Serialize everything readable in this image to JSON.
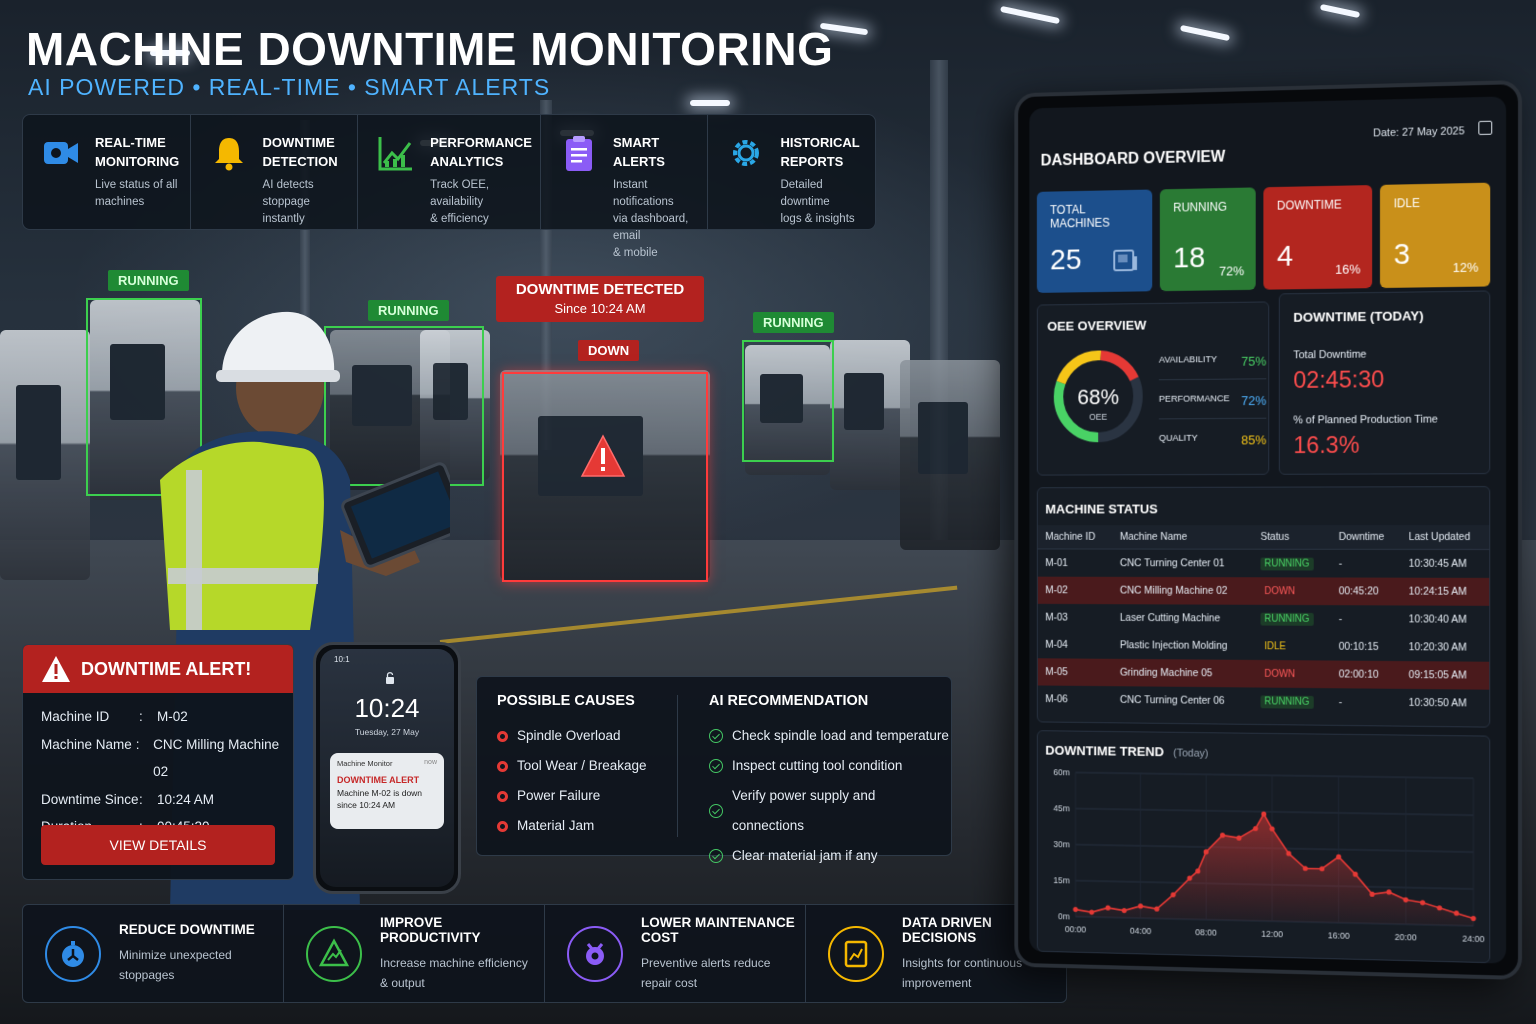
{
  "header": {
    "title": "MACHINE DOWNTIME MONITORING",
    "subtitle": "AI POWERED • REAL-TIME • SMART ALERTS"
  },
  "features": [
    {
      "icon": "video-camera-icon",
      "title_1": "REAL-TIME",
      "title_2": "MONITORING",
      "desc_1": "Live status of all",
      "desc_2": "machines",
      "color": "#2f8be6"
    },
    {
      "icon": "bell-icon",
      "title_1": "DOWNTIME",
      "title_2": "DETECTION",
      "desc_1": "AI detects stoppage",
      "desc_2": "instantly",
      "color": "#f5b800"
    },
    {
      "icon": "line-chart-icon",
      "title_1": "PERFORMANCE",
      "title_2": "ANALYTICS",
      "desc_1": "Track OEE, availability",
      "desc_2": "& efficiency",
      "color": "#3cbf4a"
    },
    {
      "icon": "clipboard-icon",
      "title_1": "SMART ALERTS",
      "title_2": "",
      "desc_1": "Instant notifications",
      "desc_2": "via dashboard, email",
      "desc_3": "& mobile",
      "color": "#8b5cf6"
    },
    {
      "icon": "gear-icon",
      "title_1": "HISTORICAL",
      "title_2": "REPORTS",
      "desc_1": "Detailed downtime",
      "desc_2": "logs & insights",
      "color": "#2aa7e6"
    }
  ],
  "scene": {
    "running_label": "RUNNING",
    "down_label": "DOWN",
    "detected_title": "DOWNTIME DETECTED",
    "detected_since": "Since 10:24 AM"
  },
  "alert": {
    "title": "DOWNTIME ALERT!",
    "rows": [
      {
        "key": "Machine ID",
        "value": "M-02"
      },
      {
        "key": "Machine Name",
        "value": "CNC Milling Machine 02"
      },
      {
        "key": "Downtime Since",
        "value": "10:24 AM"
      },
      {
        "key": "Duration",
        "value": "00:45:20"
      }
    ],
    "button": "VIEW DETAILS"
  },
  "phone": {
    "status_time": "10:1",
    "time": "10:24",
    "date": "Tuesday, 27 May",
    "notif_app": "Machine Monitor",
    "notif_when": "now",
    "notif_title": "DOWNTIME ALERT",
    "notif_body_1": "Machine M-02 is down",
    "notif_body_2": "since 10:24 AM"
  },
  "causes": {
    "title": "POSSIBLE CAUSES",
    "items": [
      "Spindle Overload",
      "Tool Wear / Breakage",
      "Power Failure",
      "Material Jam"
    ]
  },
  "recommendation": {
    "title": "AI RECOMMENDATION",
    "items": [
      "Check spindle load and temperature",
      "Inspect cutting tool condition",
      "Verify power supply and connections",
      "Clear material jam if any"
    ]
  },
  "benefits": [
    {
      "icon": "stopwatch-icon",
      "title": "REDUCE DOWNTIME",
      "desc_1": "Minimize unexpected",
      "desc_2": "stoppages",
      "color": "#2f8be6"
    },
    {
      "icon": "growth-icon",
      "title": "IMPROVE PRODUCTIVITY",
      "desc_1": "Increase machine efficiency",
      "desc_2": "& output",
      "color": "#3cbf4a"
    },
    {
      "icon": "maintenance-icon",
      "title": "LOWER MAINTENANCE COST",
      "desc_1": "Preventive alerts reduce",
      "desc_2": "repair cost",
      "color": "#8b5cf6"
    },
    {
      "icon": "data-decision-icon",
      "title": "DATA DRIVEN DECISIONS",
      "desc_1": "Insights for continuous",
      "desc_2": "improvement",
      "color": "#f5b800"
    }
  ],
  "dashboard": {
    "title": "DASHBOARD OVERVIEW",
    "date": "Date: 27 May 2025",
    "kpis": [
      {
        "label": "TOTAL MACHINES",
        "value": "25",
        "pct": "",
        "color": "#1c4f8c"
      },
      {
        "label": "RUNNING",
        "value": "18",
        "pct": "72%",
        "color": "#2a7a34"
      },
      {
        "label": "DOWNTIME",
        "value": "4",
        "pct": "16%",
        "color": "#b3261f"
      },
      {
        "label": "IDLE",
        "value": "3",
        "pct": "12%",
        "color": "#c9901a"
      }
    ],
    "oee": {
      "title": "OEE OVERVIEW",
      "value": "68%",
      "label": "OEE",
      "metrics": [
        {
          "label": "AVAILABILITY",
          "value": "75%",
          "color": "#49d265"
        },
        {
          "label": "PERFORMANCE",
          "value": "72%",
          "color": "#4fb3ff"
        },
        {
          "label": "QUALITY",
          "value": "85%",
          "color": "#f5c518"
        }
      ],
      "ring_fraction": 0.68
    },
    "downtime_today": {
      "title": "DOWNTIME (TODAY)",
      "total_label": "Total Downtime",
      "total_value": "02:45:30",
      "pct_label": "% of Planned Production Time",
      "pct_value": "16.3%"
    },
    "machine_status": {
      "title": "MACHINE STATUS",
      "columns": [
        "Machine ID",
        "Machine Name",
        "Status",
        "Downtime",
        "Last Updated"
      ],
      "rows": [
        {
          "id": "M-01",
          "name": "CNC Turning Center 01",
          "status": "RUNNING",
          "downtime": "-",
          "updated": "10:30:45 AM"
        },
        {
          "id": "M-02",
          "name": "CNC Milling Machine 02",
          "status": "DOWN",
          "downtime": "00:45:20",
          "updated": "10:24:15 AM"
        },
        {
          "id": "M-03",
          "name": "Laser Cutting Machine",
          "status": "RUNNING",
          "downtime": "-",
          "updated": "10:30:40 AM"
        },
        {
          "id": "M-04",
          "name": "Plastic Injection Molding",
          "status": "IDLE",
          "downtime": "00:10:15",
          "updated": "10:20:30 AM"
        },
        {
          "id": "M-05",
          "name": "Grinding Machine 05",
          "status": "DOWN",
          "downtime": "02:00:10",
          "updated": "09:15:05 AM"
        },
        {
          "id": "M-06",
          "name": "CNC Turning Center 06",
          "status": "RUNNING",
          "downtime": "-",
          "updated": "10:30:50 AM"
        }
      ]
    }
  },
  "chart_data": {
    "type": "area",
    "title": "DOWNTIME TREND",
    "subtitle": "(Today)",
    "xlabel": "",
    "ylabel": "",
    "x_ticks": [
      "00:00",
      "04:00",
      "08:00",
      "12:00",
      "16:00",
      "20:00",
      "24:00"
    ],
    "y_ticks": [
      "0m",
      "15m",
      "30m",
      "45m",
      "60m"
    ],
    "ylim": [
      0,
      60
    ],
    "xlim": [
      0,
      24
    ],
    "series": [
      {
        "color": "#e53935",
        "x": [
          0,
          1,
          2,
          3,
          4,
          5,
          6,
          7,
          7.5,
          8,
          9,
          10,
          11,
          11.5,
          12,
          13,
          14,
          15,
          16,
          17,
          18,
          19,
          20,
          21,
          22,
          23,
          24
        ],
        "y": [
          3,
          2,
          4,
          3,
          5,
          4,
          10,
          17,
          20,
          28,
          35,
          34,
          38,
          44,
          38,
          28,
          22,
          22,
          27,
          20,
          12,
          13,
          10,
          9,
          7,
          5,
          3
        ]
      }
    ]
  }
}
